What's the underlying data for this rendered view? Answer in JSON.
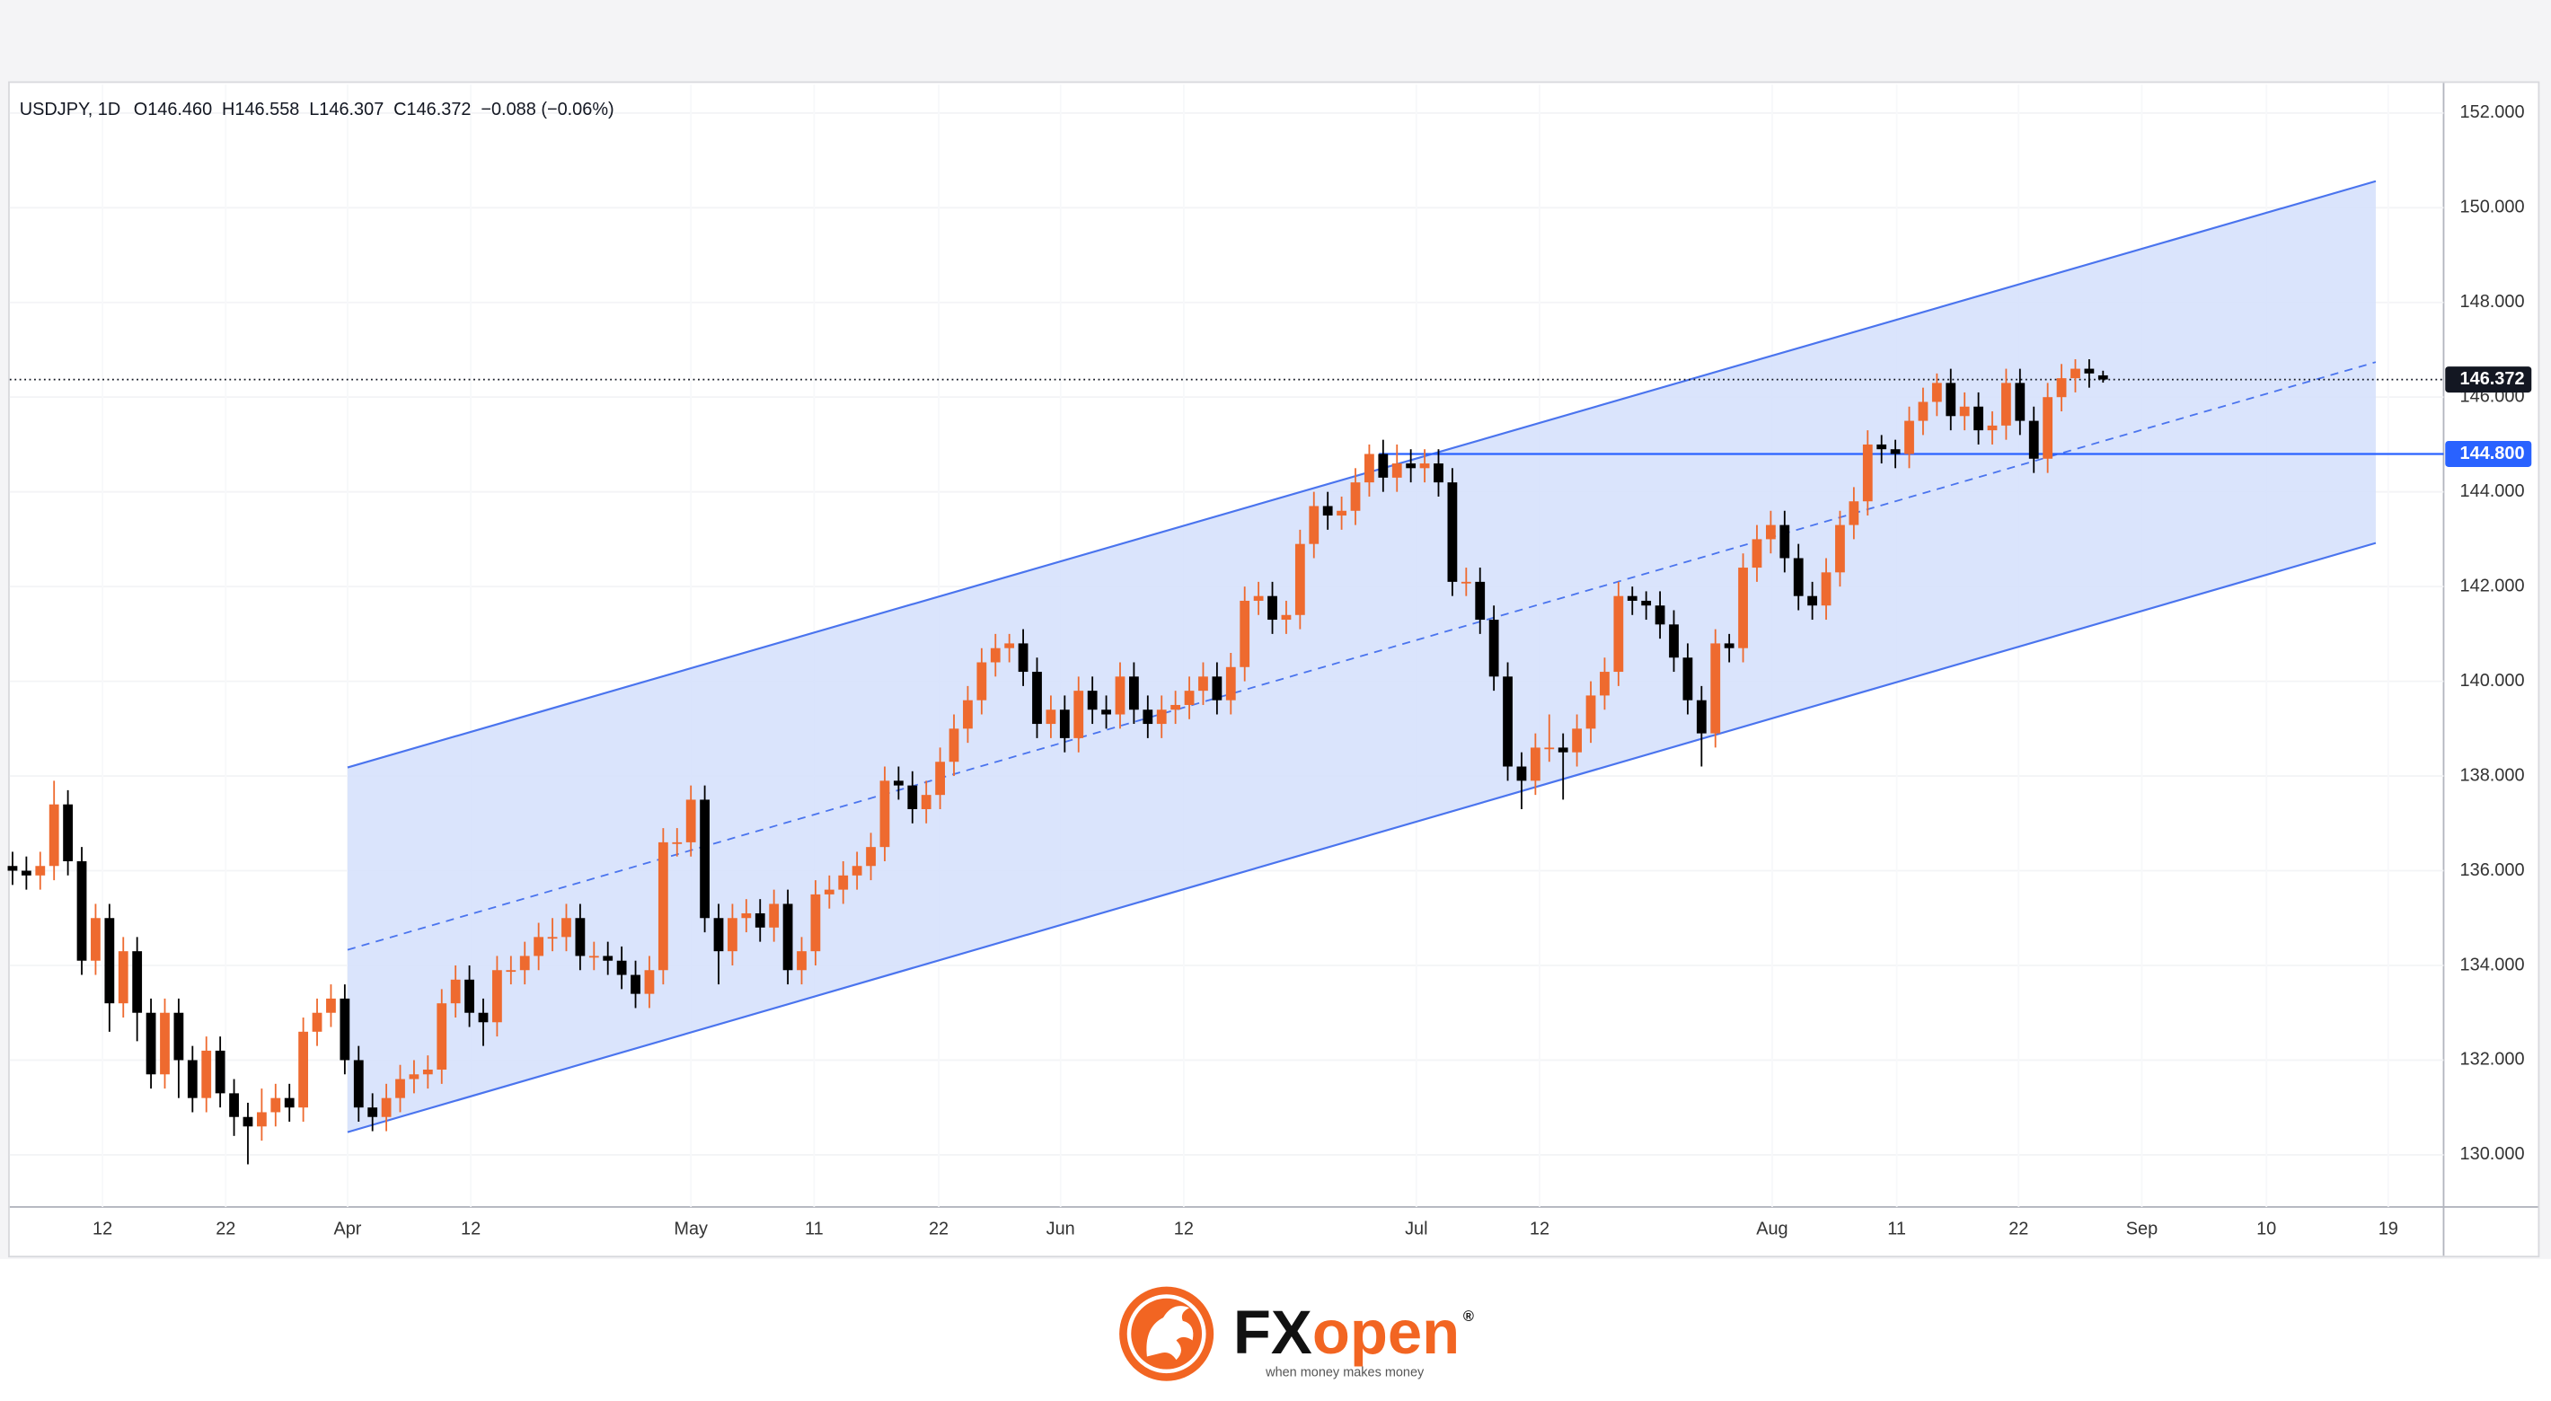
{
  "chart_data": {
    "type": "candlestick",
    "ohlc_header": {
      "symbol": "USDJPY, 1D",
      "open": "O146.460",
      "high": "H146.558",
      "low": "L146.307",
      "close": "C146.372",
      "change": "−0.088 (−0.06%)"
    },
    "up_color": "#ee6a2f",
    "down_color": "#000000",
    "open": [
      136.1,
      136.0,
      135.9,
      136.1,
      137.4,
      136.2,
      134.1,
      135.0,
      133.2,
      134.3,
      133.0,
      131.7,
      133.0,
      132.0,
      131.2,
      132.2,
      131.3,
      130.8,
      130.6,
      130.9,
      131.2,
      131.0,
      132.6,
      133.0,
      133.3,
      132.0,
      131.0,
      130.8,
      131.2,
      131.6,
      131.7,
      131.8,
      133.2,
      133.7,
      133.0,
      132.8,
      133.9,
      133.9,
      134.2,
      134.6,
      134.6,
      135.0,
      134.2,
      134.2,
      134.1,
      133.8,
      133.4,
      133.9,
      136.6,
      136.6,
      137.5,
      135.0,
      134.3,
      135.0,
      135.1,
      134.8,
      135.3,
      133.9,
      134.3,
      135.5,
      135.6,
      135.9,
      136.1,
      136.5,
      137.9,
      137.8,
      137.3,
      137.6,
      138.3,
      139.0,
      139.6,
      140.4,
      140.7,
      140.8,
      140.2,
      139.1,
      139.4,
      138.8,
      139.8,
      139.4,
      139.3,
      140.1,
      139.4,
      139.1,
      139.4,
      139.5,
      139.8,
      140.1,
      139.6,
      140.3,
      141.7,
      141.8,
      141.3,
      141.4,
      142.9,
      143.7,
      143.5,
      143.6,
      144.2,
      144.8,
      144.3,
      144.6,
      144.5,
      144.6,
      144.2,
      142.1,
      142.1,
      141.3,
      140.1,
      138.2,
      137.9,
      138.6,
      138.6,
      138.5,
      139.0,
      139.7,
      140.2,
      141.8,
      141.7,
      141.6,
      141.2,
      140.5,
      139.6,
      138.9,
      140.8,
      140.7,
      142.4,
      143.0,
      143.3,
      142.6,
      141.8,
      141.6,
      142.3,
      143.3,
      143.8,
      145.0,
      144.9,
      144.8,
      145.5,
      145.9,
      146.3,
      145.6,
      145.8,
      145.3,
      145.4,
      146.3,
      145.5,
      144.7,
      146.0,
      146.4,
      146.6,
      146.46
    ],
    "high": [
      136.4,
      136.3,
      136.4,
      137.9,
      137.7,
      136.5,
      135.3,
      135.3,
      134.6,
      134.6,
      133.3,
      133.3,
      133.3,
      132.3,
      132.5,
      132.5,
      131.6,
      131.1,
      131.4,
      131.5,
      131.5,
      132.9,
      133.3,
      133.6,
      133.6,
      132.3,
      131.3,
      131.5,
      131.9,
      132.0,
      132.1,
      133.5,
      134.0,
      134.0,
      133.3,
      134.2,
      134.2,
      134.5,
      134.9,
      135.0,
      135.3,
      135.3,
      134.5,
      134.5,
      134.4,
      134.1,
      134.2,
      136.9,
      136.9,
      137.8,
      137.8,
      135.3,
      135.3,
      135.4,
      135.4,
      135.6,
      135.6,
      134.6,
      135.8,
      135.9,
      136.2,
      136.4,
      136.8,
      138.2,
      138.2,
      138.1,
      137.9,
      138.6,
      139.3,
      139.9,
      140.7,
      141.0,
      141.0,
      141.1,
      140.5,
      139.7,
      139.7,
      140.1,
      140.1,
      139.7,
      140.4,
      140.4,
      139.7,
      139.7,
      139.8,
      140.1,
      140.4,
      140.4,
      140.6,
      142.0,
      142.1,
      142.1,
      141.7,
      143.2,
      144.0,
      144.0,
      143.9,
      144.5,
      145.0,
      145.1,
      145.0,
      144.9,
      144.9,
      144.9,
      144.5,
      142.4,
      142.4,
      141.6,
      140.4,
      138.5,
      138.9,
      139.3,
      138.9,
      139.3,
      140.0,
      140.5,
      142.1,
      142.0,
      141.9,
      141.9,
      141.5,
      140.8,
      139.9,
      141.1,
      141.0,
      142.7,
      143.3,
      143.6,
      143.6,
      142.9,
      142.1,
      142.6,
      143.6,
      144.1,
      145.3,
      145.2,
      145.1,
      145.8,
      146.2,
      146.5,
      146.6,
      146.1,
      146.1,
      145.7,
      146.6,
      146.6,
      145.8,
      146.3,
      146.7,
      146.8,
      146.8,
      146.558
    ],
    "low": [
      135.7,
      135.6,
      135.6,
      135.8,
      135.9,
      133.8,
      133.8,
      132.6,
      132.9,
      132.4,
      131.4,
      131.4,
      131.2,
      130.9,
      130.9,
      131.0,
      130.4,
      129.8,
      130.3,
      130.6,
      130.7,
      130.7,
      132.3,
      132.7,
      131.7,
      130.7,
      130.5,
      130.5,
      130.9,
      131.3,
      131.4,
      131.5,
      132.9,
      132.7,
      132.3,
      132.5,
      133.6,
      133.6,
      133.9,
      134.3,
      134.3,
      133.9,
      133.9,
      133.8,
      133.5,
      133.1,
      133.1,
      133.6,
      136.3,
      136.3,
      134.7,
      133.6,
      134.0,
      134.7,
      134.5,
      134.5,
      133.6,
      133.6,
      134.0,
      135.2,
      135.3,
      135.6,
      135.8,
      136.2,
      137.5,
      137.0,
      137.0,
      137.3,
      138.0,
      138.7,
      139.3,
      140.1,
      140.4,
      139.9,
      138.8,
      138.8,
      138.5,
      138.5,
      139.1,
      139.0,
      139.0,
      139.1,
      138.8,
      138.8,
      139.1,
      139.2,
      139.5,
      139.3,
      139.3,
      140.0,
      141.4,
      141.0,
      141.0,
      141.1,
      142.6,
      143.2,
      143.2,
      143.3,
      143.9,
      144.0,
      144.0,
      144.2,
      144.2,
      143.9,
      141.8,
      141.8,
      141.0,
      139.8,
      137.9,
      137.3,
      137.6,
      138.3,
      137.5,
      138.2,
      138.7,
      139.4,
      139.9,
      141.4,
      141.3,
      140.9,
      140.2,
      139.3,
      138.2,
      138.6,
      140.4,
      140.4,
      142.1,
      142.7,
      142.3,
      141.5,
      141.3,
      141.3,
      142.0,
      143.0,
      143.5,
      144.6,
      144.5,
      144.5,
      145.2,
      145.6,
      145.3,
      145.3,
      145.0,
      145.0,
      145.1,
      145.2,
      144.4,
      144.4,
      145.7,
      146.1,
      146.2,
      146.307
    ],
    "close": [
      136.0,
      135.9,
      136.1,
      137.4,
      136.2,
      134.1,
      135.0,
      133.2,
      134.3,
      133.0,
      131.7,
      133.0,
      132.0,
      131.2,
      132.2,
      131.3,
      130.8,
      130.6,
      130.9,
      131.2,
      131.0,
      132.6,
      133.0,
      133.3,
      132.0,
      131.0,
      130.8,
      131.2,
      131.6,
      131.7,
      131.8,
      133.2,
      133.7,
      133.0,
      132.8,
      133.9,
      133.9,
      134.2,
      134.6,
      134.6,
      135.0,
      134.2,
      134.2,
      134.1,
      133.8,
      133.4,
      133.9,
      136.6,
      136.6,
      137.5,
      135.0,
      134.3,
      135.0,
      135.1,
      134.8,
      135.3,
      133.9,
      134.3,
      135.5,
      135.6,
      135.9,
      136.1,
      136.5,
      137.9,
      137.8,
      137.3,
      137.6,
      138.3,
      139.0,
      139.6,
      140.4,
      140.7,
      140.8,
      140.2,
      139.1,
      139.4,
      138.8,
      139.8,
      139.4,
      139.3,
      140.1,
      139.4,
      139.1,
      139.4,
      139.5,
      139.8,
      140.1,
      139.6,
      140.3,
      141.7,
      141.8,
      141.3,
      141.4,
      142.9,
      143.7,
      143.5,
      143.6,
      144.2,
      144.8,
      144.3,
      144.6,
      144.5,
      144.6,
      144.2,
      142.1,
      142.1,
      141.3,
      140.1,
      138.2,
      137.9,
      138.6,
      138.6,
      138.5,
      139.0,
      139.7,
      140.2,
      141.8,
      141.7,
      141.6,
      141.2,
      140.5,
      139.6,
      138.9,
      140.8,
      140.7,
      142.4,
      143.0,
      143.3,
      142.6,
      141.8,
      141.6,
      142.3,
      143.3,
      143.8,
      145.0,
      144.9,
      144.8,
      145.5,
      145.9,
      146.3,
      145.6,
      145.8,
      145.3,
      145.4,
      146.3,
      145.5,
      144.7,
      146.0,
      146.4,
      146.6,
      146.5,
      146.372
    ],
    "xlim": [
      -0.2,
      175.6
    ],
    "xticks": [
      {
        "value": 6.5,
        "label": "12"
      },
      {
        "value": 15.4,
        "label": "22"
      },
      {
        "value": 24.2,
        "label": "Apr"
      },
      {
        "value": 33.1,
        "label": "12"
      },
      {
        "value": 49.0,
        "label": "May"
      },
      {
        "value": 57.9,
        "label": "11"
      },
      {
        "value": 66.9,
        "label": "22"
      },
      {
        "value": 75.7,
        "label": "Jun"
      },
      {
        "value": 84.6,
        "label": "12"
      },
      {
        "value": 101.4,
        "label": "Jul"
      },
      {
        "value": 110.3,
        "label": "12"
      },
      {
        "value": 127.1,
        "label": "Aug"
      },
      {
        "value": 136.1,
        "label": "11"
      },
      {
        "value": 144.9,
        "label": "22"
      },
      {
        "value": 153.8,
        "label": "Sep"
      },
      {
        "value": 162.8,
        "label": "10"
      },
      {
        "value": 171.6,
        "label": "19"
      }
    ],
    "ylim": [
      128.9,
      152.6
    ],
    "yticks": [
      {
        "value": 130,
        "label": "130.000"
      },
      {
        "value": 132,
        "label": "132.000"
      },
      {
        "value": 134,
        "label": "134.000"
      },
      {
        "value": 136,
        "label": "136.000"
      },
      {
        "value": 138,
        "label": "138.000"
      },
      {
        "value": 140,
        "label": "140.000"
      },
      {
        "value": 142,
        "label": "142.000"
      },
      {
        "value": 144,
        "label": "144.000"
      },
      {
        "value": 146,
        "label": "146.000"
      },
      {
        "value": 148,
        "label": "148.000"
      },
      {
        "value": 150,
        "label": "150.000"
      },
      {
        "value": 152,
        "label": "152.000"
      }
    ],
    "grid": true,
    "channel": {
      "x": [
        24.2,
        170.7
      ],
      "upper": [
        138.18,
        150.56
      ],
      "middle": [
        134.33,
        146.74
      ],
      "lower": [
        130.48,
        142.92
      ],
      "color": "#4a74ee",
      "fill": "#d3dffc"
    },
    "level": {
      "value": 144.8,
      "label": "144.800",
      "x_start": 98.7,
      "color": "#2962ff"
    },
    "last_price": {
      "value": 146.372,
      "label": "146.372",
      "color": "#131722"
    }
  },
  "logo": {
    "brand_prefix": "FX",
    "brand_suffix": "open",
    "registered": "®",
    "tagline": "when money makes money"
  }
}
